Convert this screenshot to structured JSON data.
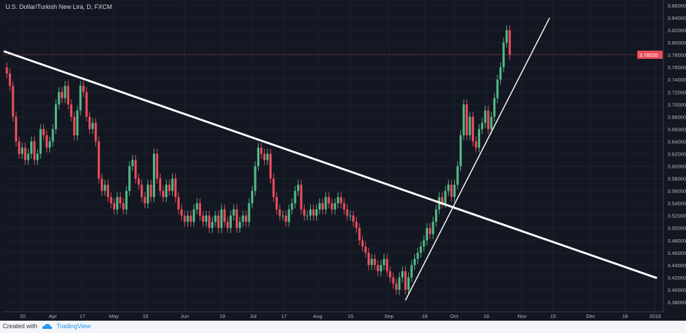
{
  "header": {
    "title": "U.S. Dollar/Turkish New Lira, D, FXCM"
  },
  "footer": {
    "created_with": "Created with",
    "brand": "TradingView",
    "logo_icon": "tradingview-cloud-icon"
  },
  "colors": {
    "background": "#131722",
    "grid": "#1e222d",
    "up": "#53b987",
    "down": "#eb4d5c",
    "trendline": "#ffffff",
    "axis_text": "#b2b5be"
  },
  "chart_data": {
    "type": "candlestick",
    "symbol": "USDTRY",
    "interval": "D",
    "ylim": [
      3.37,
      3.87
    ],
    "y_ticks": [
      "3.86000",
      "3.84000",
      "3.82000",
      "3.80000",
      "3.78000",
      "3.76000",
      "3.74000",
      "3.72000",
      "3.70000",
      "3.68000",
      "3.66000",
      "3.64000",
      "3.62000",
      "3.60000",
      "3.58000",
      "3.56000",
      "3.54000",
      "3.52000",
      "3.50000",
      "3.48000",
      "3.46000",
      "3.44000",
      "3.42000",
      "3.40000",
      "3.38000"
    ],
    "x_ticks": [
      "20",
      "Apr",
      "17",
      "May",
      "15",
      "Jun",
      "19",
      "Jul",
      "17",
      "Aug",
      "15",
      "Sep",
      "18",
      "Oct",
      "16",
      "Nov",
      "15",
      "Dec",
      "18",
      "2018"
    ],
    "last_price": "3.78035",
    "first_bar": "2017-03-13",
    "closes": [
      3.75,
      3.73,
      3.68,
      3.64,
      3.62,
      3.63,
      3.61,
      3.62,
      3.64,
      3.61,
      3.62,
      3.66,
      3.65,
      3.63,
      3.64,
      3.66,
      3.7,
      3.72,
      3.71,
      3.73,
      3.7,
      3.68,
      3.65,
      3.69,
      3.73,
      3.72,
      3.68,
      3.66,
      3.67,
      3.64,
      3.58,
      3.56,
      3.57,
      3.55,
      3.54,
      3.53,
      3.55,
      3.54,
      3.53,
      3.56,
      3.6,
      3.61,
      3.58,
      3.57,
      3.55,
      3.54,
      3.57,
      3.55,
      3.62,
      3.58,
      3.56,
      3.55,
      3.57,
      3.56,
      3.58,
      3.55,
      3.53,
      3.52,
      3.51,
      3.52,
      3.51,
      3.53,
      3.54,
      3.52,
      3.51,
      3.52,
      3.5,
      3.51,
      3.52,
      3.5,
      3.53,
      3.51,
      3.5,
      3.52,
      3.53,
      3.5,
      3.51,
      3.52,
      3.51,
      3.54,
      3.56,
      3.6,
      3.63,
      3.62,
      3.61,
      3.62,
      3.58,
      3.55,
      3.53,
      3.52,
      3.52,
      3.51,
      3.53,
      3.54,
      3.56,
      3.57,
      3.53,
      3.52,
      3.52,
      3.53,
      3.52,
      3.53,
      3.54,
      3.53,
      3.55,
      3.54,
      3.53,
      3.54,
      3.55,
      3.54,
      3.53,
      3.52,
      3.52,
      3.51,
      3.5,
      3.48,
      3.47,
      3.46,
      3.44,
      3.45,
      3.44,
      3.43,
      3.44,
      3.45,
      3.43,
      3.42,
      3.41,
      3.4,
      3.42,
      3.43,
      3.4,
      3.42,
      3.44,
      3.45,
      3.46,
      3.47,
      3.48,
      3.5,
      3.49,
      3.51,
      3.53,
      3.55,
      3.54,
      3.56,
      3.57,
      3.55,
      3.57,
      3.6,
      3.65,
      3.7,
      3.65,
      3.68,
      3.64,
      3.63,
      3.66,
      3.67,
      3.69,
      3.66,
      3.68,
      3.71,
      3.74,
      3.76,
      3.8,
      3.82,
      3.78035
    ],
    "trendlines": [
      {
        "from": {
          "date": "2017-03-10",
          "price": 3.786
        },
        "to": {
          "date": "2018-01-03",
          "price": 3.419
        },
        "width": "thick"
      },
      {
        "from": {
          "date": "2017-09-11",
          "price": 3.383
        },
        "to": {
          "date": "2017-11-15",
          "price": 3.84
        },
        "width": "thin"
      }
    ]
  }
}
